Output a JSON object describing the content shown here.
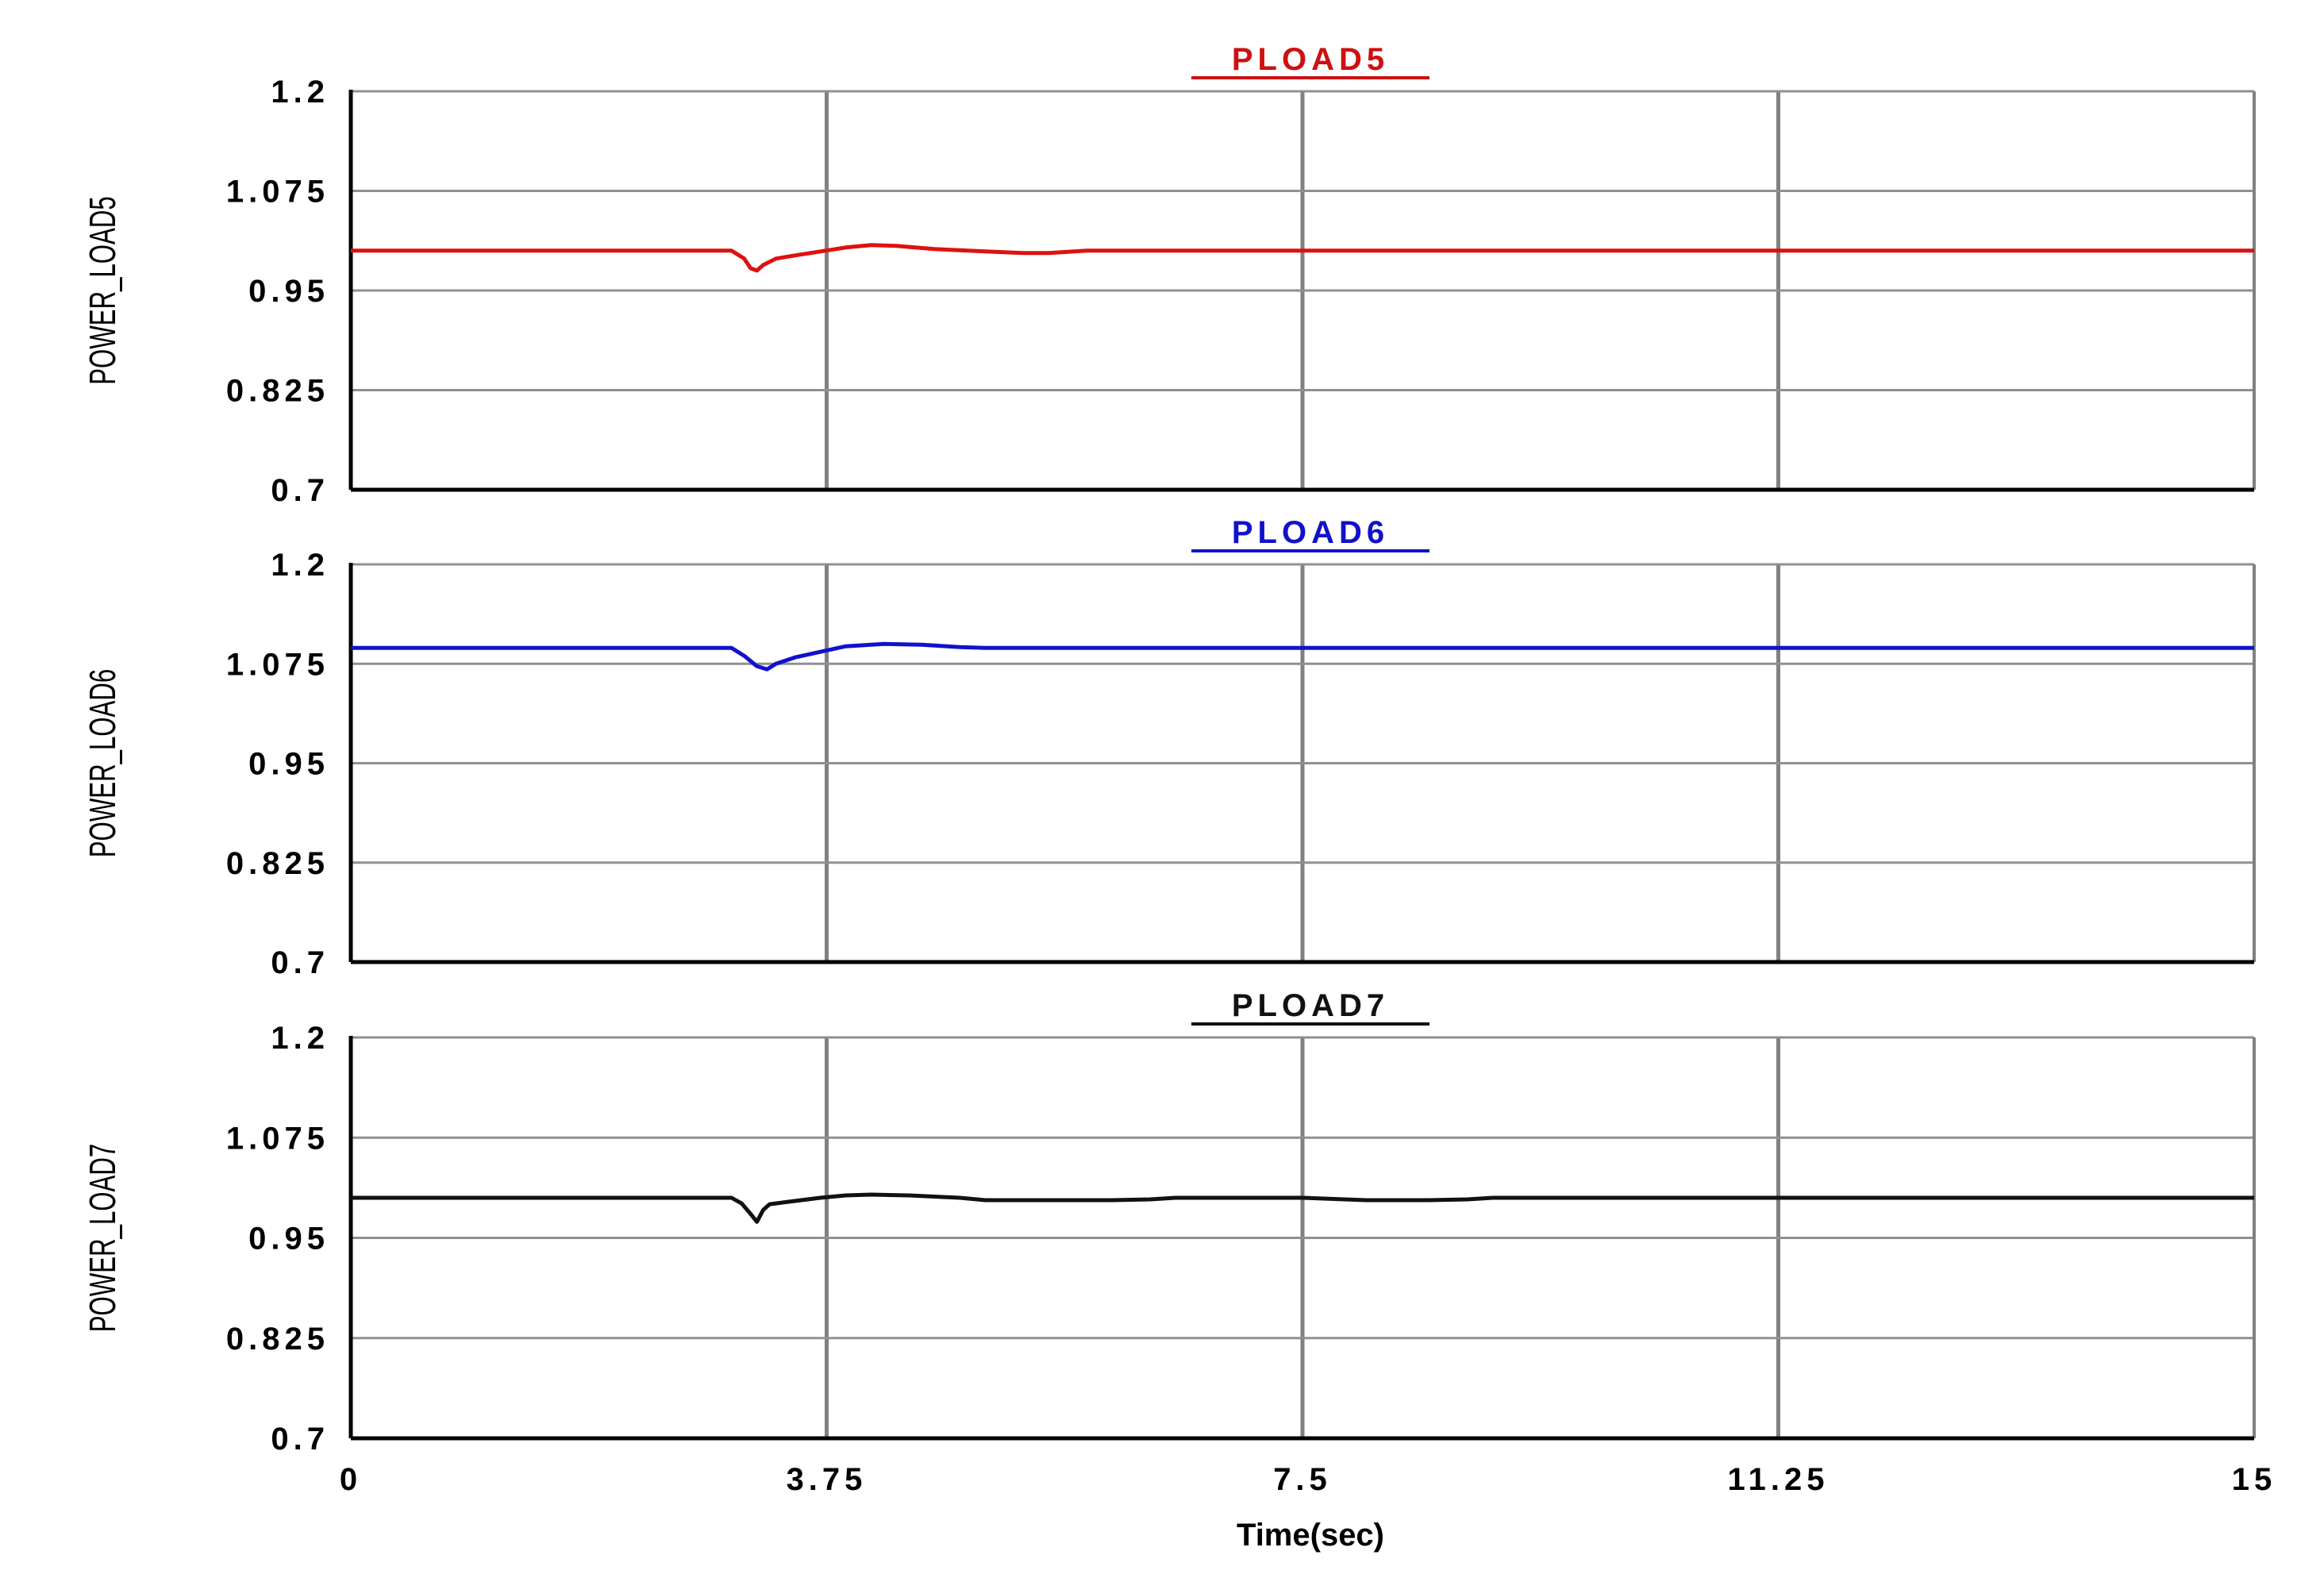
{
  "chart_data": [
    {
      "type": "line",
      "title": "PLOAD5",
      "title_color": "#cc1111",
      "ylabel": "POWER_LOAD5",
      "ylim": [
        0.7,
        1.2
      ],
      "yticks": [
        "0.7",
        "0.825",
        "0.95",
        "1.075",
        "1.2"
      ],
      "xlim": [
        0,
        15
      ],
      "grid": true,
      "series": [
        {
          "color": "#dd1111",
          "x": [
            0,
            3.0,
            3.1,
            3.15,
            3.2,
            3.25,
            3.35,
            3.5,
            3.7,
            3.9,
            4.1,
            4.3,
            4.6,
            5.0,
            5.3,
            5.5,
            5.6,
            5.8,
            6.0,
            15
          ],
          "y": [
            1.0,
            1.0,
            0.99,
            0.978,
            0.975,
            0.982,
            0.99,
            0.994,
            0.999,
            1.004,
            1.007,
            1.006,
            1.002,
            0.999,
            0.997,
            0.997,
            0.998,
            1.0,
            1.0,
            1.0
          ]
        }
      ]
    },
    {
      "type": "line",
      "title": "PLOAD6",
      "title_color": "#1111cc",
      "ylabel": "POWER_LOAD6",
      "ylim": [
        0.7,
        1.2
      ],
      "yticks": [
        "0.7",
        "0.825",
        "0.95",
        "1.075",
        "1.2"
      ],
      "xlim": [
        0,
        15
      ],
      "grid": true,
      "series": [
        {
          "color": "#1111cc",
          "x": [
            0,
            3.0,
            3.1,
            3.2,
            3.28,
            3.35,
            3.5,
            3.7,
            3.9,
            4.2,
            4.5,
            4.8,
            5.0,
            15
          ],
          "y": [
            1.095,
            1.095,
            1.085,
            1.072,
            1.068,
            1.075,
            1.083,
            1.09,
            1.097,
            1.1,
            1.099,
            1.096,
            1.095,
            1.095
          ]
        }
      ]
    },
    {
      "type": "line",
      "title": "PLOAD7",
      "title_color": "#111111",
      "ylabel": "POWER_LOAD7",
      "ylim": [
        0.7,
        1.2
      ],
      "yticks": [
        "0.7",
        "0.825",
        "0.95",
        "1.075",
        "1.2"
      ],
      "xlim": [
        0,
        15
      ],
      "xticks": [
        "0",
        "3.75",
        "7.5",
        "11.25",
        "15"
      ],
      "xlabel": "Time(sec)",
      "grid": true,
      "series": [
        {
          "color": "#111111",
          "x": [
            0,
            3.0,
            3.08,
            3.15,
            3.2,
            3.25,
            3.3,
            3.45,
            3.7,
            3.9,
            4.1,
            4.4,
            4.8,
            5.0,
            5.5,
            6.0,
            6.3,
            6.5,
            7.0,
            7.5,
            8.0,
            8.5,
            8.8,
            9.0,
            15
          ],
          "y": [
            1.0,
            1.0,
            0.993,
            0.98,
            0.97,
            0.985,
            0.992,
            0.995,
            1.0,
            1.003,
            1.004,
            1.003,
            1.0,
            0.997,
            0.997,
            0.997,
            0.998,
            1.0,
            1.0,
            1.0,
            0.997,
            0.997,
            0.998,
            1.0,
            1.0
          ]
        }
      ]
    }
  ]
}
